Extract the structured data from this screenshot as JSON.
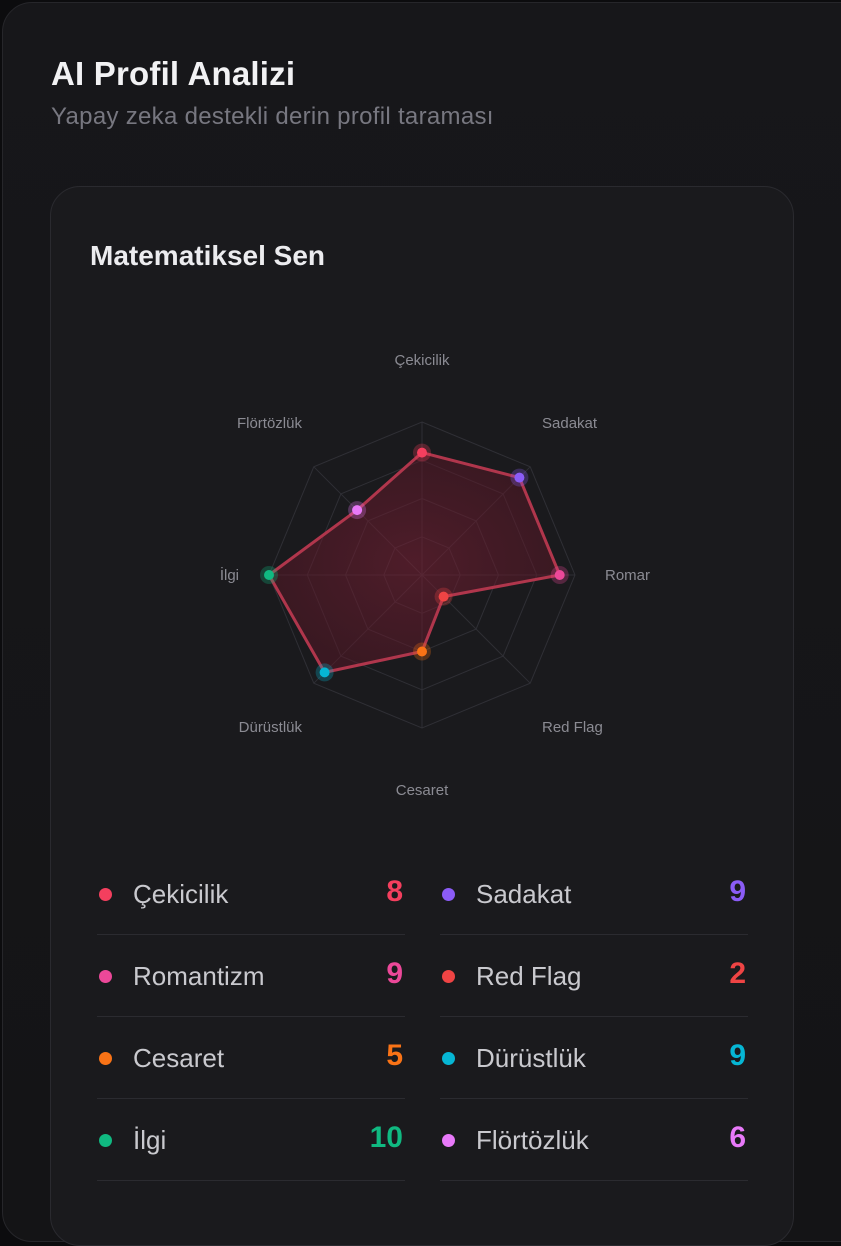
{
  "header": {
    "title": "AI Profil Analizi",
    "subtitle": "Yapay zeka destekli derin profil taraması"
  },
  "card": {
    "title": "Matematiksel Sen"
  },
  "chart_data": {
    "type": "radar",
    "max": 10,
    "levels": 4,
    "axis_labels": [
      "Çekicilik",
      "Sadakat",
      "Romar",
      "Red Flag",
      "Cesaret",
      "Dürüstlük",
      "İlgi",
      "Flörtözlük"
    ],
    "values": [
      8,
      9,
      9,
      2,
      5,
      9,
      10,
      6
    ],
    "colors": [
      "#f43f5e",
      "#8b5cf6",
      "#ec4899",
      "#ef4444",
      "#f97316",
      "#06b6d4",
      "#10b981",
      "#e879f9"
    ],
    "series_color": "#b0364c"
  },
  "stats": [
    {
      "label": "Çekicilik",
      "value": "8",
      "color": "#f43f5e"
    },
    {
      "label": "Sadakat",
      "value": "9",
      "color": "#8b5cf6"
    },
    {
      "label": "Romantizm",
      "value": "9",
      "color": "#ec4899"
    },
    {
      "label": "Red Flag",
      "value": "2",
      "color": "#ef4444"
    },
    {
      "label": "Cesaret",
      "value": "5",
      "color": "#f97316"
    },
    {
      "label": "Dürüstlük",
      "value": "9",
      "color": "#06b6d4"
    },
    {
      "label": "İlgi",
      "value": "10",
      "color": "#10b981"
    },
    {
      "label": "Flörtözlük",
      "value": "6",
      "color": "#e879f9"
    }
  ]
}
